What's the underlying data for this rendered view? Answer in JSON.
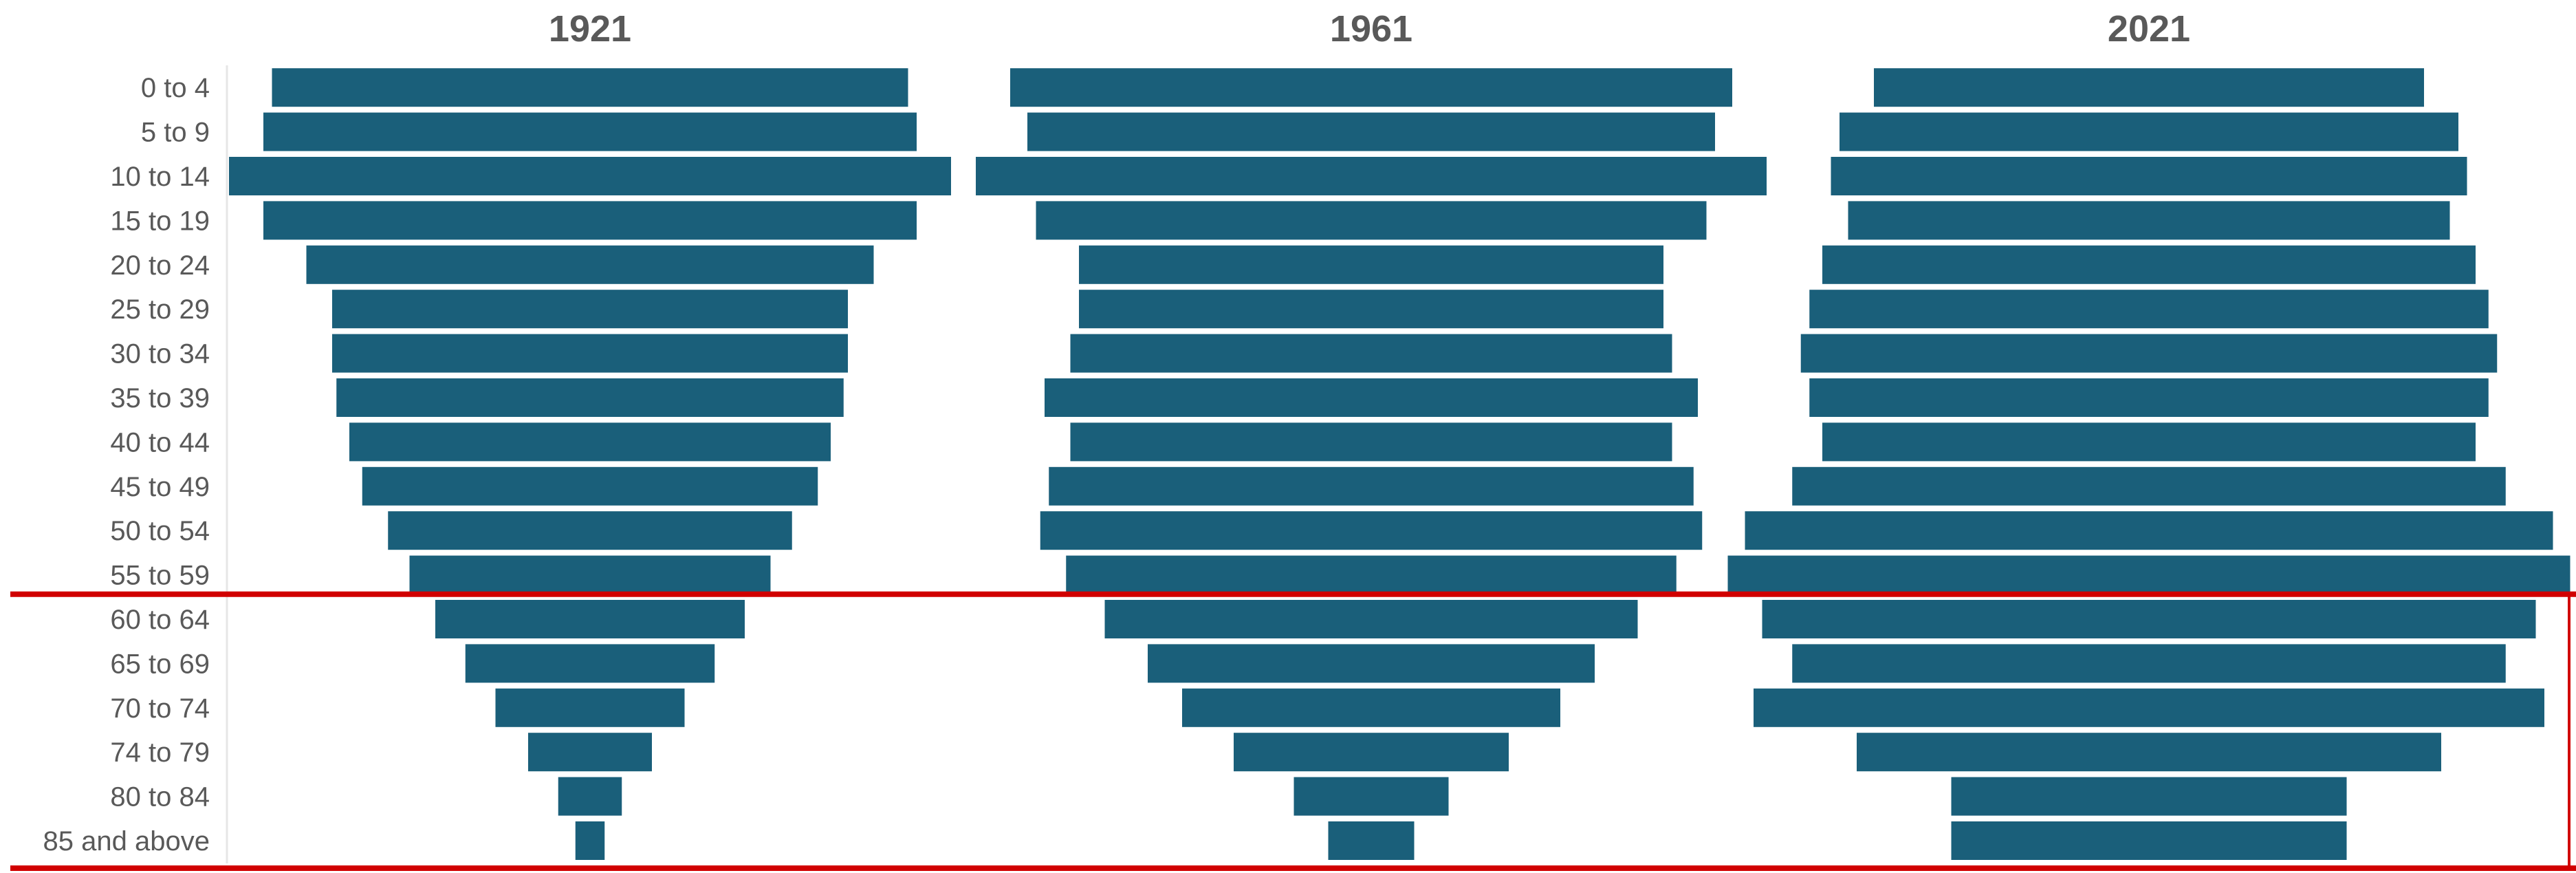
{
  "chart_data": {
    "type": "bar",
    "orientation": "horizontal",
    "variant": "population-pyramid",
    "categories": [
      "0 to 4",
      "5 to 9",
      "10 to 14",
      "15 to 19",
      "20 to 24",
      "25 to 29",
      "30 to 34",
      "35 to 39",
      "40 to 44",
      "45 to 49",
      "50 to 54",
      "55 to 59",
      "60 to 64",
      "65 to 69",
      "70 to 74",
      "74 to 79",
      "80 to 84",
      "85 and above"
    ],
    "series": [
      {
        "name": "1921",
        "values": [
          3.7,
          3.8,
          4.2,
          3.8,
          3.3,
          3.0,
          3.0,
          2.95,
          2.8,
          2.65,
          2.35,
          2.1,
          1.8,
          1.45,
          1.1,
          0.72,
          0.37,
          0.17
        ]
      },
      {
        "name": "1961",
        "values": [
          4.2,
          4.0,
          4.6,
          3.9,
          3.4,
          3.4,
          3.5,
          3.8,
          3.5,
          3.75,
          3.85,
          3.55,
          3.1,
          2.6,
          2.2,
          1.6,
          0.9,
          0.5
        ]
      },
      {
        "name": "2021",
        "values": [
          3.2,
          3.6,
          3.7,
          3.5,
          3.8,
          3.95,
          4.05,
          3.95,
          3.8,
          4.15,
          4.7,
          4.9,
          4.5,
          4.15,
          4.6,
          3.4,
          2.3,
          2.3
        ]
      }
    ],
    "color": "#1a5f7a",
    "highlight_color": "#d10000",
    "highlight_start": "60 to 64",
    "grid": false,
    "legend": "none",
    "title": "",
    "xlabel": "",
    "ylabel": ""
  }
}
